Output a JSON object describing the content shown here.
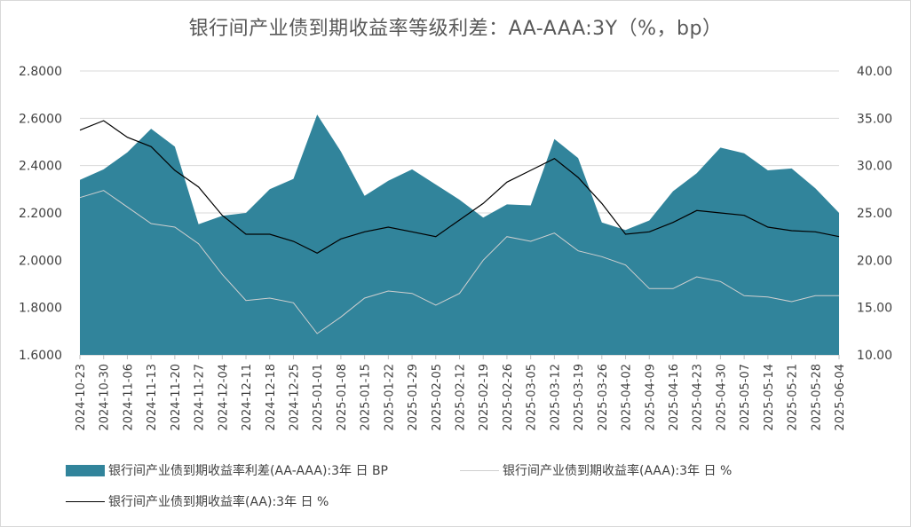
{
  "chart_data": {
    "type": "area",
    "title": "银行间产业债到期收益率等级利差：AA-AAA:3Y（%，bp）",
    "y_left": {
      "min": 1.6,
      "max": 2.8,
      "step": 0.2,
      "ticks": [
        "1.6000",
        "1.8000",
        "2.0000",
        "2.2000",
        "2.4000",
        "2.6000",
        "2.8000"
      ]
    },
    "y_right": {
      "min": 10,
      "max": 40,
      "step": 5,
      "ticks": [
        "10.00",
        "15.00",
        "20.00",
        "25.00",
        "30.00",
        "35.00",
        "40.00"
      ]
    },
    "x_ticks": [
      "2024-10-23",
      "2024-10-30",
      "2024-11-06",
      "2024-11-13",
      "2024-11-20",
      "2024-11-27",
      "2024-12-04",
      "2024-12-11",
      "2024-12-18",
      "2024-12-25",
      "2025-01-01",
      "2025-01-08",
      "2025-01-15",
      "2025-01-22",
      "2025-01-29",
      "2025-02-05",
      "2025-02-12",
      "2025-02-19",
      "2025-02-26",
      "2025-03-05",
      "2025-03-12",
      "2025-03-19",
      "2025-03-26",
      "2025-04-02",
      "2025-04-09",
      "2025-04-16",
      "2025-04-23",
      "2025-04-30",
      "2025-05-07",
      "2025-05-14",
      "2025-05-21",
      "2025-05-28",
      "2025-06-04"
    ],
    "n_points": 33,
    "series": [
      {
        "name": "银行间产业债到期收益率利差(AA-AAA):3年 日 BP",
        "axis": "right",
        "style": "area",
        "color": "#31849B",
        "values": [
          28.5,
          29.6,
          31.4,
          33.9,
          32.0,
          23.8,
          24.7,
          25.0,
          27.5,
          28.6,
          35.4,
          31.5,
          26.8,
          28.4,
          29.6,
          28.0,
          26.4,
          24.5,
          25.9,
          25.8,
          32.8,
          30.8,
          24.0,
          23.2,
          24.2,
          27.3,
          29.2,
          31.9,
          31.3,
          29.5,
          29.7,
          27.6,
          25.0
        ]
      },
      {
        "name": "银行间产业债到期收益率(AAA):3年 日 %",
        "axis": "left",
        "style": "line",
        "color": "#d0d0d0",
        "values": [
          2.265,
          2.295,
          2.225,
          2.155,
          2.14,
          2.07,
          1.94,
          1.83,
          1.84,
          1.82,
          1.69,
          1.76,
          1.84,
          1.87,
          1.86,
          1.81,
          1.86,
          2.0,
          2.1,
          2.08,
          2.115,
          2.04,
          2.015,
          1.98,
          1.88,
          1.88,
          1.93,
          1.91,
          1.85,
          1.845,
          1.825,
          1.85,
          1.85
        ]
      },
      {
        "name": "银行间产业债到期收益率(AA):3年 日 %",
        "axis": "left",
        "style": "line",
        "color": "#000000",
        "values": [
          2.55,
          2.59,
          2.52,
          2.48,
          2.38,
          2.31,
          2.19,
          2.11,
          2.11,
          2.08,
          2.03,
          2.09,
          2.12,
          2.14,
          2.12,
          2.1,
          2.17,
          2.24,
          2.33,
          2.38,
          2.43,
          2.35,
          2.24,
          2.11,
          2.12,
          2.16,
          2.21,
          2.2,
          2.19,
          2.14,
          2.125,
          2.12,
          2.1
        ]
      }
    ],
    "legend_position": "bottom",
    "grid": "horizontal"
  },
  "legend": {
    "item1": "银行间产业债到期收益率利差(AA-AAA):3年 日 BP",
    "item2": "银行间产业债到期收益率(AAA):3年 日 %",
    "item3": "银行间产业债到期收益率(AA):3年 日 %"
  }
}
